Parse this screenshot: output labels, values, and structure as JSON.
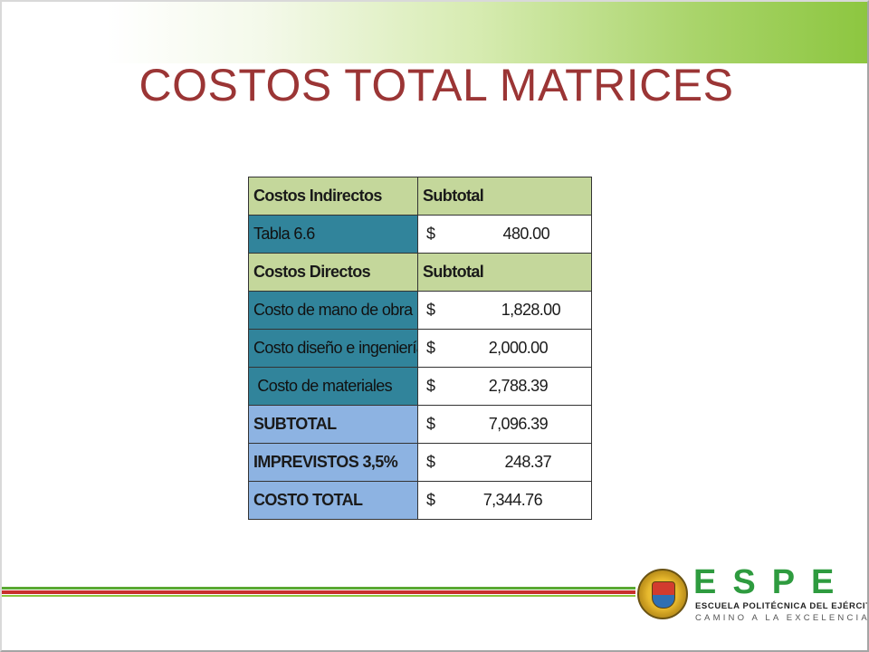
{
  "slide": {
    "title": "COSTOS TOTAL MATRICES"
  },
  "table": {
    "rows": [
      {
        "label": "Costos Indirectos",
        "value": "Subtotal",
        "type": "header"
      },
      {
        "label": "Tabla 6.6",
        "currency": "$",
        "amount": "480.00",
        "type": "teal"
      },
      {
        "label": "Costos Directos",
        "value": "Subtotal",
        "type": "header"
      },
      {
        "label": "Costo de mano de obra",
        "currency": "$",
        "amount": "1,828.00",
        "type": "teal"
      },
      {
        "label": "Costo diseño e ingeniería",
        "currency": "$",
        "amount": "2,000.00",
        "type": "teal"
      },
      {
        "label": " Costo de materiales",
        "currency": "$",
        "amount": "2,788.39",
        "type": "teal"
      },
      {
        "label": "SUBTOTAL",
        "currency": "$",
        "amount": "7,096.39",
        "type": "blue"
      },
      {
        "label": "IMPREVISTOS 3,5%",
        "currency": "$",
        "amount": "248.37",
        "type": "blue"
      },
      {
        "label": "COSTO TOTAL",
        "currency": "$",
        "amount": "7,344.76",
        "type": "blue"
      }
    ]
  },
  "logo": {
    "letters": "ESPE",
    "line1": "ESCUELA POLITÉCNICA DEL EJÉRCITO",
    "line2": "CAMINO A LA EXCELENCIA",
    "emblem": "espe-seal-icon"
  },
  "colors": {
    "title": "#9b3535",
    "header_fill": "#c4d79b",
    "teal_fill": "#31849b",
    "blue_fill": "#8db3e2",
    "logo_green": "#2e9b3f",
    "footer_red": "#c8302c",
    "footer_green": "#5aa832"
  }
}
